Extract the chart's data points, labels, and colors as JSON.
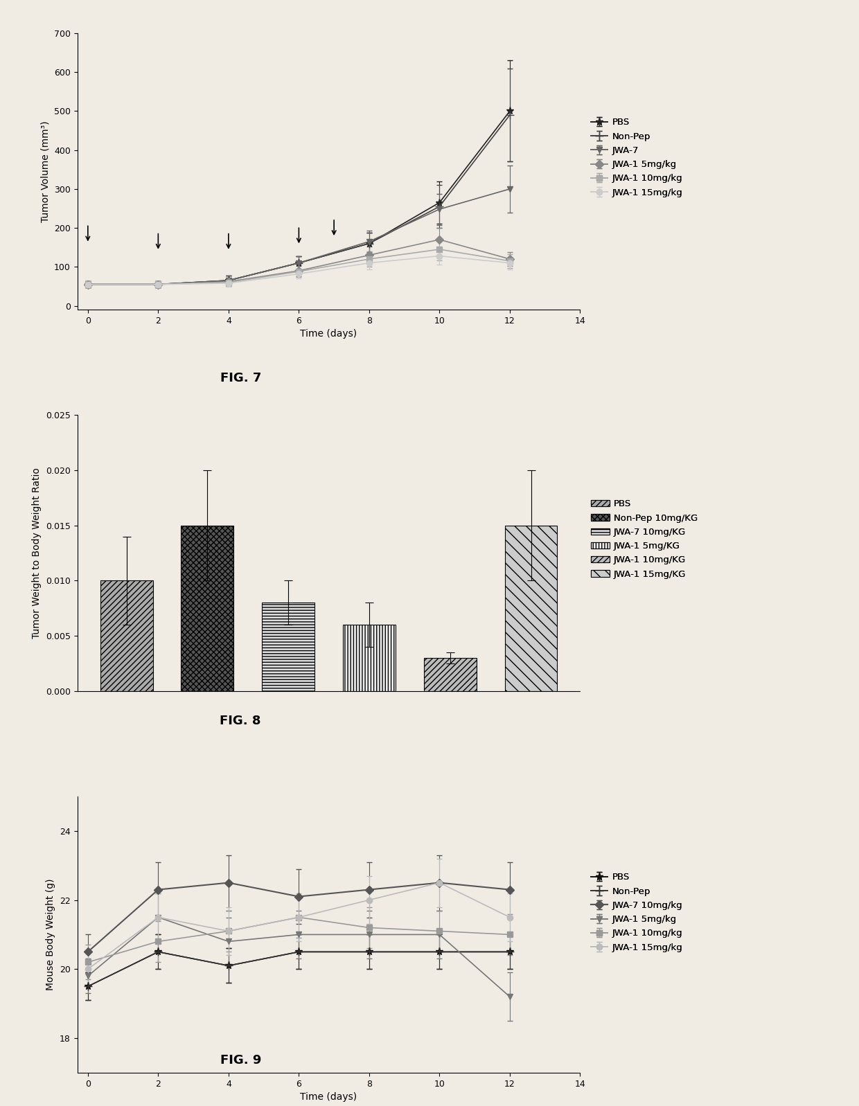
{
  "fig7": {
    "title": "FIG. 7",
    "xlabel": "Time (days)",
    "ylabel": "Tumor Volume (mm³)",
    "xlim": [
      -0.3,
      14
    ],
    "ylim": [
      -10,
      700
    ],
    "yticks": [
      0,
      100,
      200,
      300,
      400,
      500,
      600,
      700
    ],
    "xticks": [
      0,
      2,
      4,
      6,
      8,
      10,
      12,
      14
    ],
    "days": [
      0,
      2,
      4,
      6,
      8,
      10,
      12
    ],
    "series": [
      {
        "label": "PBS",
        "y": [
          55,
          55,
          65,
          110,
          160,
          265,
          500
        ],
        "yerr": [
          8,
          8,
          12,
          18,
          28,
          55,
          130
        ],
        "marker": "*",
        "color": "#222222",
        "ms": 8
      },
      {
        "label": "Non-Pep",
        "y": [
          55,
          55,
          65,
          110,
          160,
          255,
          490
        ],
        "yerr": [
          8,
          8,
          12,
          18,
          28,
          55,
          120
        ],
        "marker": "+",
        "color": "#444444",
        "ms": 8
      },
      {
        "label": "JWA-7",
        "y": [
          55,
          55,
          65,
          110,
          165,
          248,
          300
        ],
        "yerr": [
          8,
          8,
          12,
          18,
          28,
          40,
          60
        ],
        "marker": "v",
        "color": "#666666",
        "ms": 6
      },
      {
        "label": "JWA-1 5mg/kg",
        "y": [
          55,
          55,
          62,
          90,
          130,
          170,
          120
        ],
        "yerr": [
          8,
          8,
          10,
          15,
          22,
          30,
          18
        ],
        "marker": "D",
        "color": "#888888",
        "ms": 6
      },
      {
        "label": "JWA-1 10mg/kg",
        "y": [
          55,
          55,
          60,
          88,
          120,
          145,
          115
        ],
        "yerr": [
          8,
          8,
          10,
          14,
          20,
          28,
          18
        ],
        "marker": "s",
        "color": "#aaaaaa",
        "ms": 6
      },
      {
        "label": "JWA-1 15mg/kg",
        "y": [
          55,
          55,
          58,
          82,
          110,
          128,
          110
        ],
        "yerr": [
          8,
          8,
          9,
          12,
          16,
          22,
          16
        ],
        "marker": "o",
        "color": "#cccccc",
        "ms": 6
      }
    ],
    "arrows": [
      {
        "x": 0,
        "y_tip": 160,
        "y_tail": 210
      },
      {
        "x": 2,
        "y_tip": 140,
        "y_tail": 190
      },
      {
        "x": 4,
        "y_tip": 140,
        "y_tail": 190
      },
      {
        "x": 6,
        "y_tip": 155,
        "y_tail": 205
      },
      {
        "x": 7,
        "y_tip": 175,
        "y_tail": 225
      }
    ]
  },
  "fig8": {
    "title": "FIG. 8",
    "ylabel": "Tumor Weight to Body Weight Ratio",
    "ylim": [
      0,
      0.025
    ],
    "yticks": [
      0.0,
      0.005,
      0.01,
      0.015,
      0.02,
      0.025
    ],
    "values": [
      0.01,
      0.015,
      0.008,
      0.006,
      0.003,
      0.015
    ],
    "yerr": [
      0.004,
      0.005,
      0.002,
      0.002,
      0.0005,
      0.005
    ],
    "legend_labels": [
      "PBS",
      "Non-Pep 10mg/KG",
      "JWA-7 10mg/KG",
      "JWA-1 5mg/KG",
      "JWA-1 10mg/KG",
      "JWA-1 15mg/KG"
    ],
    "bar_facecolors": [
      "#aaaaaa",
      "#555555",
      "#dddddd",
      "#eeeeee",
      "#bbbbbb",
      "#cccccc"
    ],
    "hatch_list": [
      "////",
      "xxxx",
      "----",
      "||||",
      "////",
      "\\\\"
    ]
  },
  "fig9": {
    "title": "FIG. 9",
    "xlabel": "Time (days)",
    "ylabel": "Mouse Body Weight (g)",
    "xlim": [
      -0.3,
      14
    ],
    "ylim": [
      17,
      25
    ],
    "yticks": [
      18,
      20,
      22,
      24
    ],
    "xticks": [
      0,
      2,
      4,
      6,
      8,
      10,
      12,
      14
    ],
    "days": [
      0,
      2,
      4,
      6,
      8,
      10,
      12
    ],
    "series": [
      {
        "label": "PBS",
        "y": [
          19.5,
          20.5,
          20.1,
          20.5,
          20.5,
          20.5,
          20.5
        ],
        "yerr": [
          0.4,
          0.5,
          0.5,
          0.5,
          0.5,
          0.5,
          0.5
        ],
        "marker": "*",
        "color": "#111111",
        "ms": 8,
        "bold": false
      },
      {
        "label": "Non-Pep",
        "y": [
          19.5,
          20.5,
          20.1,
          20.5,
          20.5,
          20.5,
          20.5
        ],
        "yerr": [
          0.4,
          0.5,
          0.5,
          0.5,
          0.5,
          0.5,
          0.5
        ],
        "marker": "+",
        "color": "#333333",
        "ms": 8,
        "bold": false
      },
      {
        "label": "JWA-7 10mg/kg",
        "y": [
          20.5,
          22.3,
          22.5,
          22.1,
          22.3,
          22.5,
          22.3
        ],
        "yerr": [
          0.5,
          0.8,
          0.8,
          0.8,
          0.8,
          0.8,
          0.8
        ],
        "marker": "D",
        "color": "#555555",
        "ms": 6,
        "bold": true
      },
      {
        "label": "JWA-1 5mg/kg",
        "y": [
          19.8,
          21.5,
          20.8,
          21.0,
          21.0,
          21.0,
          19.2
        ],
        "yerr": [
          0.5,
          0.7,
          0.7,
          0.7,
          0.7,
          0.7,
          0.7
        ],
        "marker": "v",
        "color": "#777777",
        "ms": 6,
        "bold": false
      },
      {
        "label": "JWA-1 10mg/kg",
        "y": [
          20.2,
          20.8,
          21.1,
          21.5,
          21.2,
          21.1,
          21.0
        ],
        "yerr": [
          0.5,
          0.6,
          0.6,
          0.6,
          0.6,
          0.6,
          0.6
        ],
        "marker": "s",
        "color": "#999999",
        "ms": 6,
        "bold": false
      },
      {
        "label": "JWA-1 15mg/kg",
        "y": [
          20.0,
          21.5,
          21.1,
          21.5,
          22.0,
          22.5,
          21.5
        ],
        "yerr": [
          0.5,
          0.7,
          0.7,
          0.7,
          0.7,
          0.7,
          0.7
        ],
        "marker": "o",
        "color": "#bbbbbb",
        "ms": 6,
        "bold": false
      }
    ]
  },
  "page": {
    "bg": "#f0ece4",
    "plot_bg": "#f8f5ef"
  }
}
